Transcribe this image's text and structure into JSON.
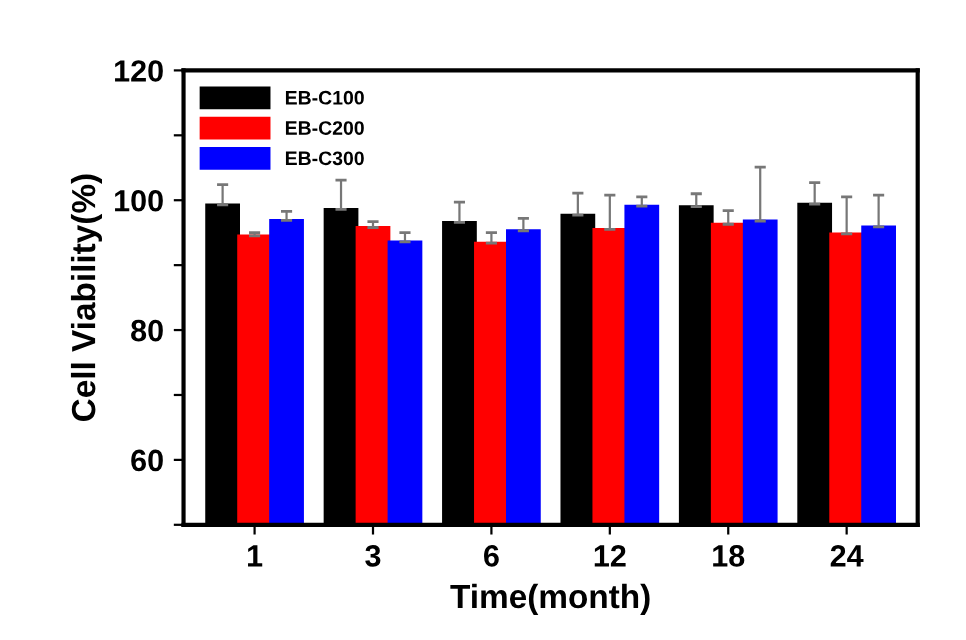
{
  "chart_data": {
    "type": "bar",
    "xlabel": "Time(month)",
    "ylabel": "Cell Viability(%)",
    "categories": [
      "1",
      "3",
      "6",
      "12",
      "18",
      "24"
    ],
    "series": [
      {
        "name": "EB-C100",
        "color": "#000000",
        "values": [
          99.3,
          98.6,
          96.6,
          97.7,
          99.0,
          99.4
        ],
        "errors": [
          3.1,
          4.5,
          3.1,
          3.4,
          2.0,
          3.3
        ]
      },
      {
        "name": "EB-C200",
        "color": "#ff0000",
        "values": [
          94.5,
          95.8,
          93.4,
          95.5,
          96.3,
          94.8
        ],
        "errors": [
          0.5,
          0.9,
          1.6,
          5.3,
          2.1,
          5.7
        ]
      },
      {
        "name": "EB-C300",
        "color": "#0000ff",
        "values": [
          96.9,
          93.6,
          95.3,
          99.1,
          96.8,
          95.9
        ],
        "errors": [
          1.4,
          1.4,
          1.9,
          1.4,
          8.3,
          4.9
        ]
      }
    ],
    "ylim": [
      50,
      120
    ],
    "yticks": [
      {
        "value": 50,
        "label": null
      },
      60,
      {
        "value": 70,
        "label": null
      },
      80,
      {
        "value": 90,
        "label": null
      },
      100,
      {
        "value": 110,
        "label": null
      },
      120
    ],
    "grid": false,
    "legend": "top left"
  }
}
